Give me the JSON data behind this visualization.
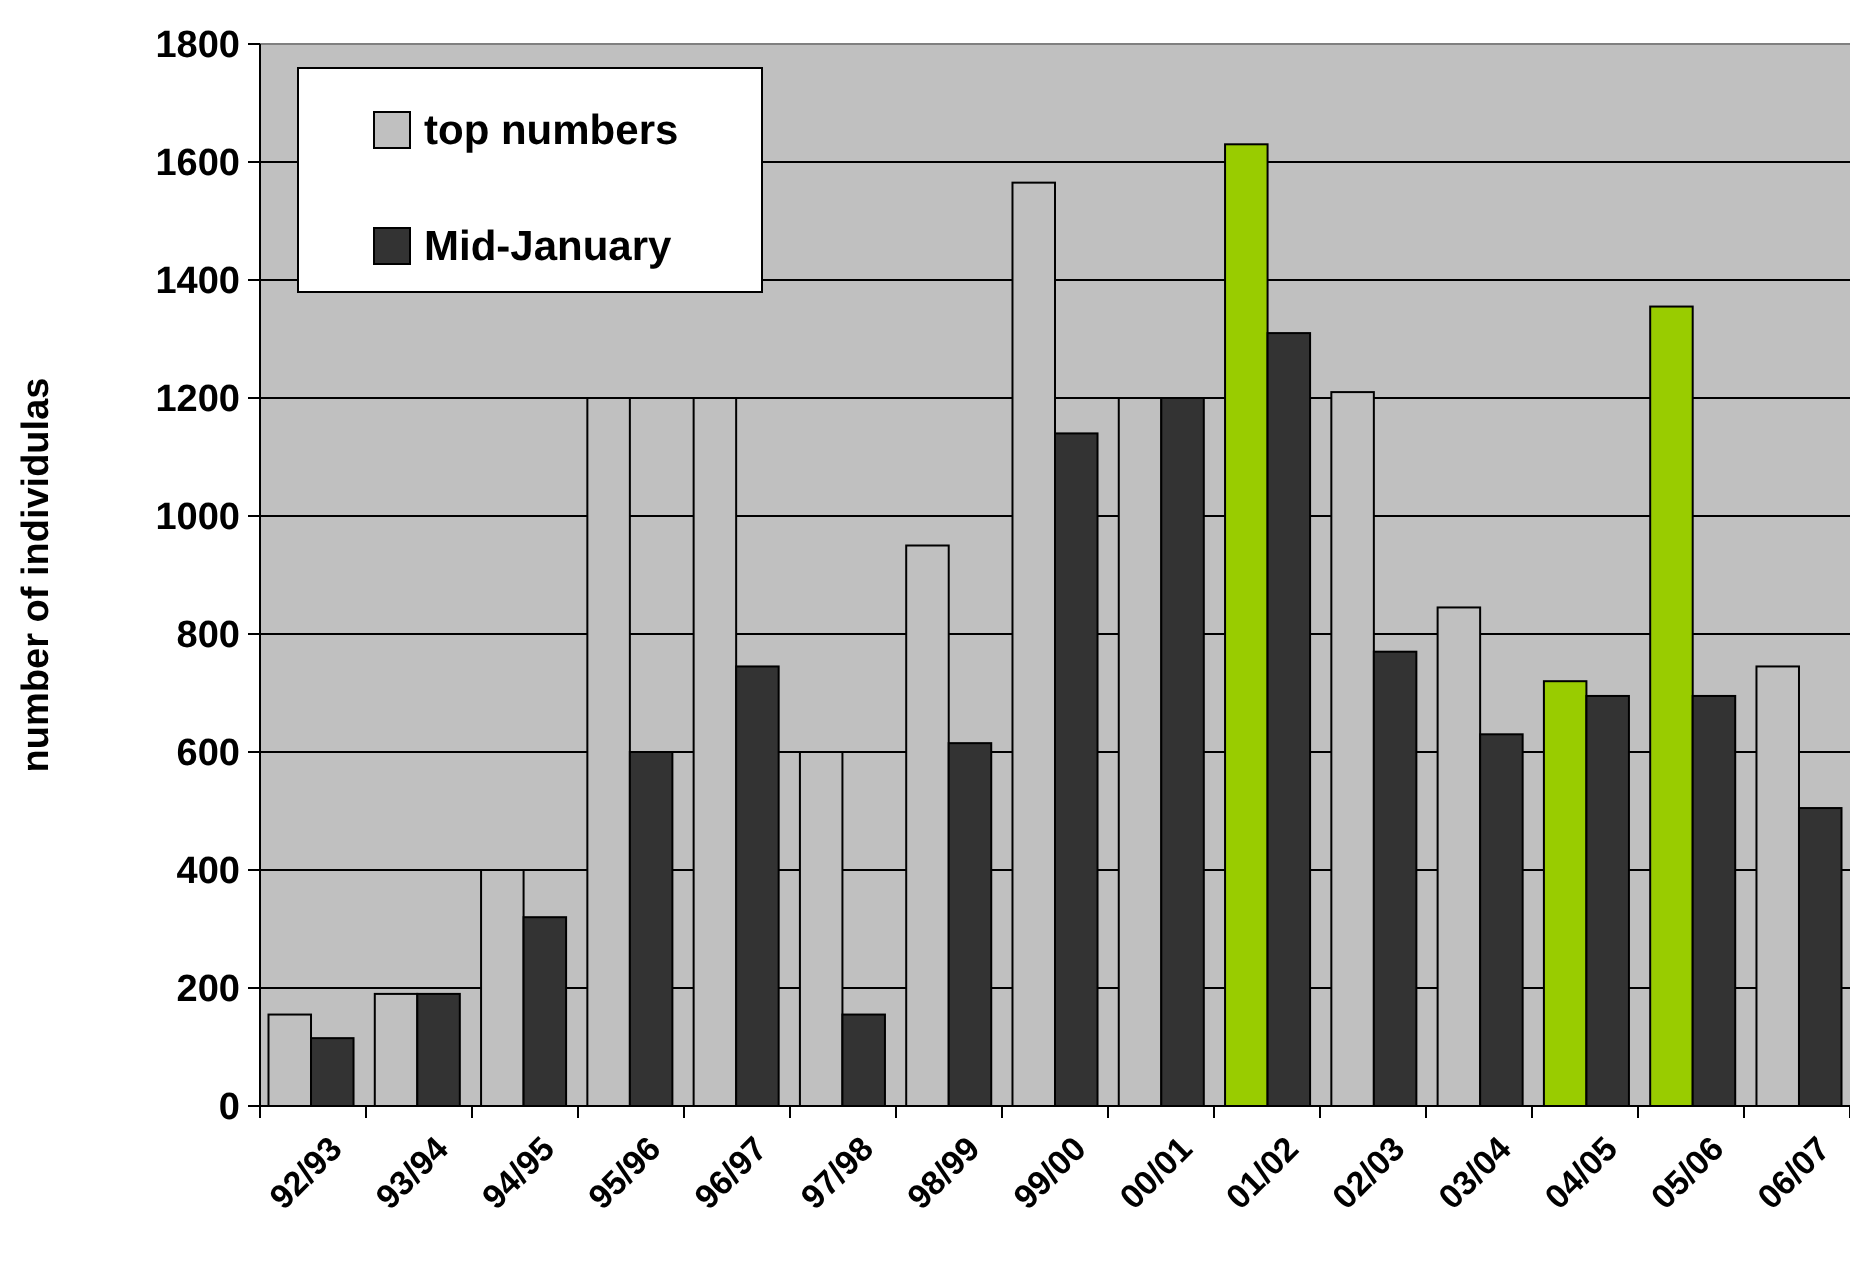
{
  "chart_data": {
    "type": "bar",
    "ylabel": "number of individulas",
    "categories": [
      "92/93",
      "93/94",
      "94/95",
      "95/96",
      "96/97",
      "97/98",
      "98/99",
      "99/00",
      "00/01",
      "01/02",
      "02/03",
      "03/04",
      "04/05",
      "05/06",
      "06/07"
    ],
    "series": [
      {
        "name": "top numbers",
        "color": "#c0c0c0",
        "colors": [
          "#c0c0c0",
          "#c0c0c0",
          "#c0c0c0",
          "#c0c0c0",
          "#c0c0c0",
          "#c0c0c0",
          "#c0c0c0",
          "#c0c0c0",
          "#c0c0c0",
          "#99cc00",
          "#c0c0c0",
          "#c0c0c0",
          "#99cc00",
          "#99cc00",
          "#c0c0c0"
        ],
        "values": [
          155,
          190,
          400,
          1200,
          1200,
          600,
          950,
          1565,
          1200,
          1630,
          1210,
          845,
          720,
          1355,
          745
        ]
      },
      {
        "name": "Mid-January",
        "color": "#333333",
        "values": [
          115,
          190,
          320,
          600,
          745,
          155,
          615,
          1140,
          1200,
          1310,
          770,
          630,
          695,
          695,
          505
        ]
      }
    ],
    "ylim": [
      0,
      1800
    ],
    "yticks": [
      0,
      200,
      400,
      600,
      800,
      1000,
      1200,
      1400,
      1600,
      1800
    ],
    "grid": "y",
    "legend": "top left"
  }
}
